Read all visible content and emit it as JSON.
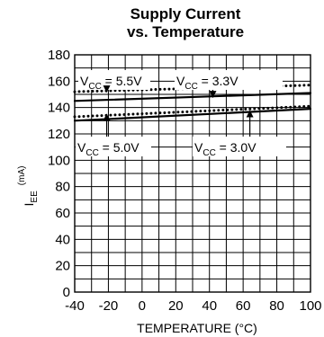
{
  "chart_data": {
    "type": "line",
    "title": [
      "Supply Current",
      "vs. Temperature"
    ],
    "xlabel": "TEMPERATURE (°C)",
    "ylabel": {
      "main": "I",
      "sub": "EE",
      "unit": "(mA)"
    },
    "xlim": [
      -40,
      100
    ],
    "ylim": [
      0,
      180
    ],
    "xticks": [
      -40,
      -20,
      0,
      20,
      40,
      60,
      80,
      100
    ],
    "yticks": [
      0,
      20,
      40,
      60,
      80,
      100,
      120,
      140,
      160,
      180
    ],
    "grid": true,
    "series": [
      {
        "x": [
          -40,
          100
        ],
        "y": [
          152,
          157
        ],
        "style": "dotted"
      },
      {
        "x": [
          -40,
          100
        ],
        "y": [
          145,
          151
        ],
        "style": "solid"
      },
      {
        "x": [
          -40,
          100
        ],
        "y": [
          133,
          141
        ],
        "style": "dotted"
      },
      {
        "x": [
          -40,
          100
        ],
        "y": [
          130,
          139
        ],
        "style": "solid"
      }
    ],
    "annotations": [
      {
        "prefix": "V",
        "sub": "CC",
        "value": " = 5.5V",
        "series": 0
      },
      {
        "prefix": "V",
        "sub": "CC",
        "value": " = 3.3V",
        "series": 1
      },
      {
        "prefix": "V",
        "sub": "CC",
        "value": " = 5.0V",
        "series": 2
      },
      {
        "prefix": "V",
        "sub": "CC",
        "value": " = 3.0V",
        "series": 3
      }
    ]
  }
}
